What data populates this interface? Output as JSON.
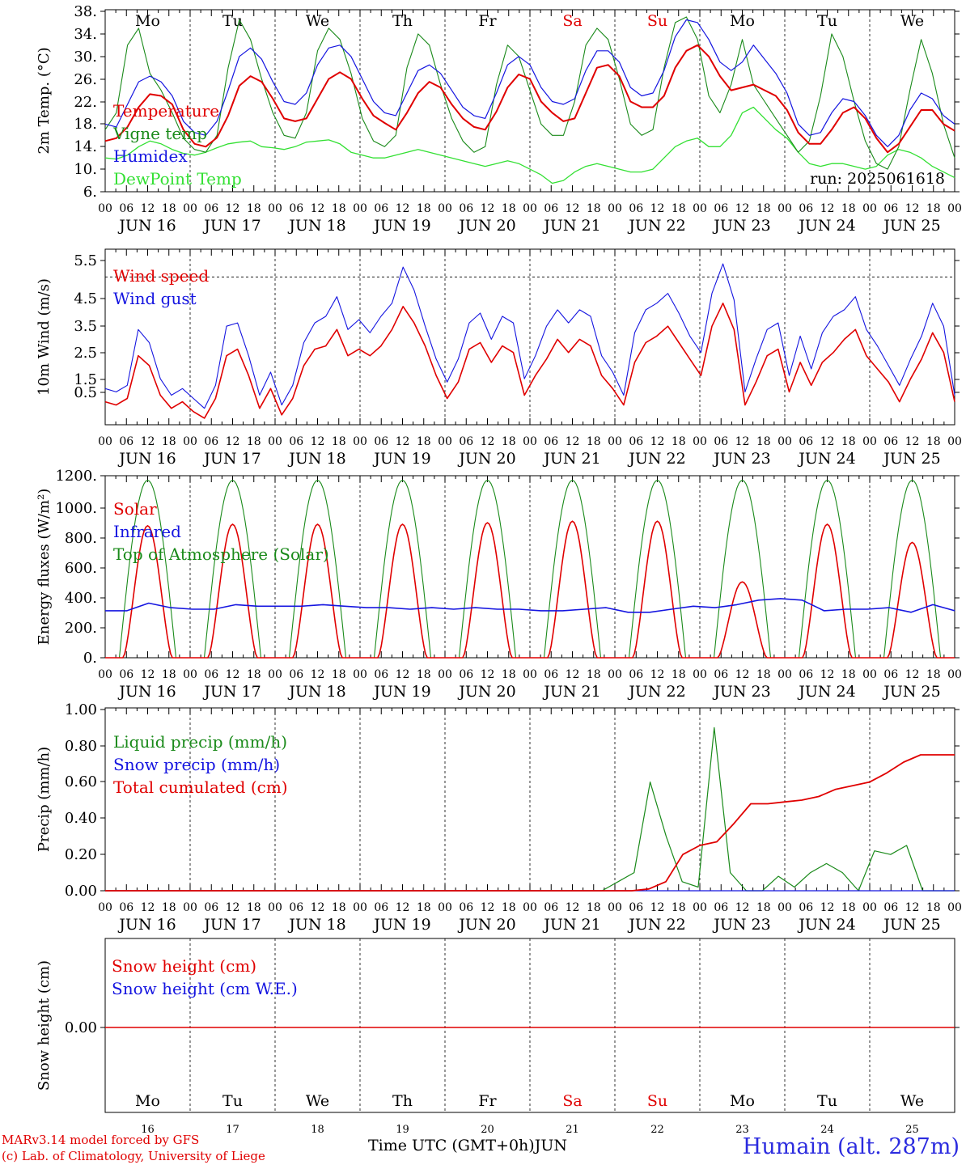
{
  "footer": {
    "model_line": "MARv3.14 model forced by GFS",
    "credit_line": "(c) Lab. of Climatology, University of Liege",
    "time_axis": "Time UTC (GMT+0h)",
    "month": "JUN",
    "station": "Humain (alt. 287m)"
  },
  "colors": {
    "red": "#e00000",
    "darkgreen": "#1a8a1a",
    "blue": "#1515e0",
    "lightgreen": "#33e033",
    "grid": "#000000"
  },
  "chart_data": [
    {
      "type": "line",
      "ylabel": "2m Temp. (°C)",
      "ylim": [
        6,
        38
      ],
      "yticks": [
        "38.",
        "34.",
        "30.",
        "26.",
        "22.",
        "18.",
        "14.",
        "10.",
        "6."
      ],
      "weekday_labels": [
        "Mo",
        "Tu",
        "We",
        "Th",
        "Fr",
        "Sa",
        "Su",
        "Mo",
        "Tu",
        "We"
      ],
      "annotation": "run: 2025061618",
      "series": [
        {
          "name": "Temperature",
          "values": [
            15.0,
            15.5,
            17.5,
            21,
            23.3,
            23,
            21.5,
            17,
            14.5,
            14.0,
            15.6,
            19.5,
            24.8,
            26.5,
            25.5,
            22.5,
            19.0,
            18.5,
            19.0,
            22.5,
            26.0,
            27.2,
            26.0,
            22.5,
            19.5,
            18.2,
            17.0,
            20.0,
            23.5,
            25.5,
            24.5,
            21.5,
            19.0,
            17.5,
            17.0,
            20.2,
            24.5,
            26.8,
            26.0,
            22.0,
            20.0,
            18.5,
            19.0,
            23.5,
            28.0,
            28.5,
            26.5,
            22.0,
            21.0,
            21.0,
            23.0,
            28.0,
            31.0,
            32.0,
            30.0,
            26.5,
            24.0,
            24.5,
            25.0,
            24.0,
            23.0,
            20.5,
            16.5,
            14.5,
            14.5,
            17.0,
            20.0,
            21.0,
            19.0,
            15.5,
            13.0,
            14.5,
            17.5,
            20.5,
            20.5,
            18.0,
            16.8
          ]
        },
        {
          "name": "Vigne temp",
          "values": [
            17.0,
            20.0,
            32.0,
            35.0,
            27.0,
            24.0,
            20.0,
            15.5,
            13.5,
            13.0,
            16.0,
            28.0,
            36.5,
            33.0,
            26.0,
            20.0,
            16.0,
            15.5,
            20.0,
            31.0,
            35.0,
            33.0,
            27.0,
            19.0,
            15.0,
            14.0,
            16.0,
            28.0,
            34.0,
            32.0,
            25.0,
            19.0,
            15.0,
            13.0,
            14.0,
            25.0,
            32.0,
            30.0,
            24.0,
            18.0,
            16.0,
            16.0,
            22.0,
            32.0,
            35.0,
            33.0,
            26.0,
            18.0,
            16.0,
            17.0,
            28.0,
            36.0,
            37.0,
            33.0,
            23.0,
            20.0,
            25.0,
            33.0,
            25.0,
            22.0,
            19.0,
            16.0,
            13.0,
            15.0,
            23.0,
            34.0,
            30.0,
            22.0,
            15.0,
            11.0,
            10.0,
            14.0,
            24.0,
            33.0,
            27.0,
            18.0,
            12.0
          ]
        },
        {
          "name": "Humidex",
          "values": [
            18.0,
            17.5,
            21.5,
            25.5,
            26.5,
            25.5,
            23.0,
            18.5,
            16.5,
            16.0,
            18.5,
            24.0,
            30.0,
            31.5,
            29.5,
            25.5,
            22.0,
            21.5,
            23.5,
            28.5,
            31.5,
            32.0,
            30.0,
            26.0,
            22.0,
            20.0,
            19.5,
            23.5,
            27.5,
            28.5,
            27.0,
            24.0,
            21.0,
            19.5,
            19.0,
            23.5,
            28.5,
            30.0,
            28.5,
            24.5,
            22.0,
            21.5,
            22.5,
            27.5,
            31.0,
            31.0,
            29.0,
            24.5,
            23.0,
            23.5,
            27.5,
            33.5,
            36.5,
            36.0,
            33.0,
            29.0,
            27.5,
            29.0,
            32.0,
            29.5,
            27.0,
            23.5,
            18.0,
            16.0,
            16.5,
            20.0,
            22.5,
            22.0,
            19.5,
            16.0,
            14.0,
            16.0,
            20.5,
            23.5,
            22.5,
            19.5,
            18.0
          ]
        },
        {
          "name": "DewPoint Temp",
          "values": [
            12.0,
            11.8,
            12.5,
            14.0,
            15.0,
            14.5,
            13.5,
            12.8,
            12.5,
            13.0,
            13.8,
            14.5,
            14.8,
            15.0,
            14.0,
            13.8,
            13.5,
            14.0,
            14.8,
            15.0,
            15.2,
            14.5,
            13.0,
            12.5,
            12.0,
            12.0,
            12.5,
            13.0,
            13.5,
            13.0,
            12.5,
            12.0,
            11.5,
            11.0,
            10.5,
            11.0,
            11.5,
            11.0,
            10.0,
            9.0,
            7.5,
            8.0,
            9.5,
            10.5,
            11.0,
            10.5,
            10.0,
            9.5,
            9.5,
            10.0,
            12.0,
            14.0,
            15.0,
            15.5,
            14.0,
            14.0,
            16.0,
            20.0,
            21.0,
            19.0,
            17.0,
            15.5,
            13.0,
            11.0,
            10.5,
            11.0,
            11.0,
            10.5,
            10.0,
            10.5,
            12.5,
            13.5,
            13.0,
            12.0,
            10.5,
            9.5,
            8.5
          ]
        }
      ]
    },
    {
      "type": "line",
      "ylabel": "10m Wind (m/s)",
      "ylim": [
        0.5,
        5.75
      ],
      "yticks": [
        "5.5",
        "4.5",
        "3.5",
        "2.5",
        "1.5",
        "0.5"
      ],
      "reference_line": 5.0,
      "series": [
        {
          "name": "Wind speed",
          "values": [
            1.2,
            1.1,
            1.3,
            2.6,
            2.3,
            1.4,
            1.0,
            1.2,
            0.9,
            0.7,
            1.3,
            2.6,
            2.8,
            2.0,
            1.0,
            1.6,
            0.8,
            1.3,
            2.3,
            2.8,
            2.9,
            3.4,
            2.6,
            2.8,
            2.6,
            2.9,
            3.4,
            4.1,
            3.6,
            2.9,
            2.0,
            1.3,
            1.8,
            2.8,
            3.0,
            2.4,
            2.9,
            2.7,
            1.4,
            2.0,
            2.5,
            3.1,
            2.7,
            3.1,
            2.9,
            2.0,
            1.6,
            1.1,
            2.4,
            3.0,
            3.2,
            3.5,
            3.0,
            2.5,
            2.0,
            3.5,
            4.2,
            3.4,
            1.1,
            1.8,
            2.6,
            2.8,
            1.5,
            2.4,
            1.7,
            2.4,
            2.7,
            3.1,
            3.4,
            2.6,
            2.2,
            1.8,
            1.2,
            1.9,
            2.5,
            3.3,
            2.7,
            1.2
          ]
        },
        {
          "name": "Wind gust",
          "values": [
            1.6,
            1.5,
            1.7,
            3.4,
            3.0,
            1.9,
            1.4,
            1.6,
            1.3,
            1.0,
            1.7,
            3.5,
            3.6,
            2.6,
            1.4,
            2.1,
            1.1,
            1.7,
            3.0,
            3.6,
            3.8,
            4.4,
            3.4,
            3.7,
            3.3,
            3.8,
            4.2,
            5.3,
            4.6,
            3.5,
            2.5,
            1.8,
            2.5,
            3.6,
            3.9,
            3.1,
            3.8,
            3.6,
            1.9,
            2.6,
            3.5,
            4.0,
            3.6,
            4.0,
            3.8,
            2.6,
            2.1,
            1.4,
            3.3,
            4.0,
            4.2,
            4.5,
            3.9,
            3.2,
            2.7,
            4.5,
            5.4,
            4.3,
            1.5,
            2.5,
            3.4,
            3.6,
            2.0,
            3.2,
            2.2,
            3.3,
            3.8,
            4.0,
            4.4,
            3.4,
            2.9,
            2.3,
            1.7,
            2.5,
            3.2,
            4.2,
            3.5,
            1.4
          ]
        }
      ]
    },
    {
      "type": "line",
      "ylabel": "Energy fluxes (W/m²)",
      "ylim": [
        0,
        1200
      ],
      "yticks": [
        "1200.",
        "1000.",
        "800.",
        "600.",
        "400.",
        "200.",
        "0."
      ],
      "series": [
        {
          "name": "Solar",
          "values": [
            0,
            0,
            870,
            0,
            0,
            0,
            880,
            0,
            0,
            0,
            880,
            0,
            0,
            0,
            880,
            0,
            0,
            0,
            890,
            0,
            0,
            0,
            900,
            0,
            0,
            0,
            900,
            0,
            0,
            0,
            500,
            0,
            0,
            0,
            880,
            0,
            0,
            0,
            760,
            0
          ]
        },
        {
          "name": "Infrared",
          "values": [
            310,
            310,
            360,
            330,
            320,
            320,
            350,
            340,
            340,
            340,
            350,
            340,
            330,
            330,
            320,
            330,
            320,
            330,
            320,
            320,
            310,
            310,
            320,
            330,
            300,
            300,
            320,
            340,
            330,
            350,
            380,
            390,
            380,
            310,
            320,
            320,
            330,
            300,
            350,
            310
          ]
        },
        {
          "name": "Top of Atmosphere (Solar)",
          "values": [
            1170
          ]
        }
      ]
    },
    {
      "type": "line",
      "ylabel": "Precip (mm/h)",
      "ylim": [
        0,
        1.0
      ],
      "yticks": [
        "1.00",
        "0.80",
        "0.60",
        "0.40",
        "0.20",
        "0.00"
      ],
      "series": [
        {
          "name": "Liquid precip (mm/h)",
          "values": [
            0,
            0,
            0,
            0,
            0,
            0,
            0,
            0,
            0,
            0,
            0,
            0,
            0,
            0,
            0,
            0,
            0,
            0,
            0,
            0,
            0,
            0,
            0,
            0,
            0,
            0,
            0,
            0,
            0,
            0,
            0,
            0,
            0.05,
            0.1,
            0.6,
            0.3,
            0.05,
            0.02,
            0.9,
            0.1,
            0,
            0,
            0.08,
            0.02,
            0.1,
            0.15,
            0.1,
            0,
            0.22,
            0.2,
            0.25,
            0,
            0,
            0
          ]
        },
        {
          "name": "Snow precip (mm/h)",
          "values": [
            0
          ]
        },
        {
          "name": "Total cumulated (cm)",
          "values": [
            0,
            0,
            0,
            0,
            0,
            0,
            0,
            0,
            0,
            0,
            0,
            0,
            0,
            0,
            0,
            0,
            0,
            0,
            0,
            0,
            0,
            0,
            0,
            0,
            0,
            0,
            0,
            0,
            0,
            0,
            0,
            0,
            0.01,
            0.05,
            0.2,
            0.25,
            0.27,
            0.37,
            0.48,
            0.48,
            0.49,
            0.5,
            0.52,
            0.56,
            0.58,
            0.6,
            0.65,
            0.71,
            0.75,
            0.75,
            0.75
          ]
        }
      ]
    },
    {
      "type": "line",
      "ylabel": "Snow height (cm)",
      "yticks": [
        "0.00"
      ],
      "weekday_labels": [
        "Mo",
        "Tu",
        "We",
        "Th",
        "Fr",
        "Sa",
        "Su",
        "Mo",
        "Tu",
        "We"
      ],
      "day_numbers": [
        "16",
        "17",
        "18",
        "19",
        "20",
        "21",
        "22",
        "23",
        "24",
        "25"
      ],
      "series": [
        {
          "name": "Snow height (cm)",
          "values": [
            0
          ]
        },
        {
          "name": "Snow height (cm W.E.)",
          "values": [
            0
          ]
        }
      ]
    }
  ],
  "x_axis": {
    "hour_labels": [
      "00",
      "06",
      "12",
      "18"
    ],
    "day_labels": [
      "JUN 16",
      "JUN 17",
      "JUN 18",
      "JUN 19",
      "JUN 20",
      "JUN 21",
      "JUN 22",
      "JUN 23",
      "JUN 24",
      "JUN 25"
    ],
    "end_label": "00"
  }
}
